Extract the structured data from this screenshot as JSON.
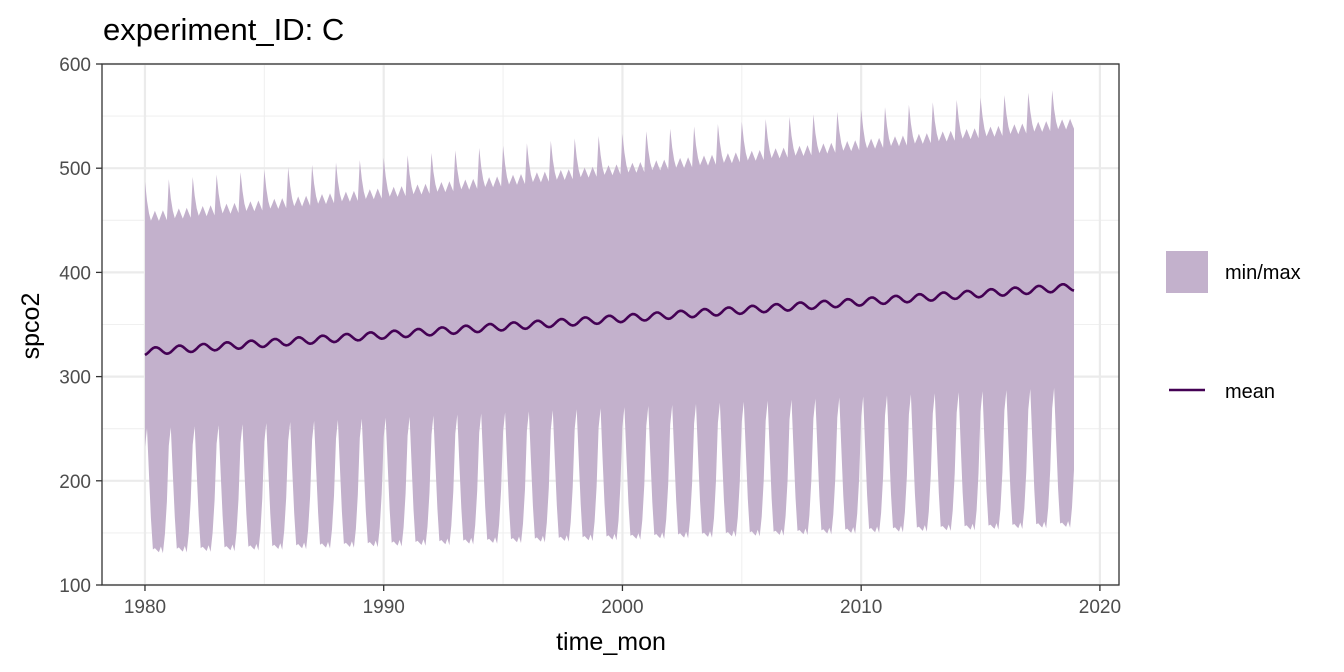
{
  "chart_data": {
    "type": "area",
    "title": "experiment_ID: C",
    "xlabel": "time_mon",
    "ylabel": "spco2",
    "xlim": [
      1978.2,
      2020.8
    ],
    "ylim": [
      100,
      600
    ],
    "x_ticks": [
      1980,
      1990,
      2000,
      2010,
      2020
    ],
    "x_tick_labels": [
      "1980",
      "1990",
      "2000",
      "2010",
      "2020"
    ],
    "y_ticks": [
      100,
      200,
      300,
      400,
      500,
      600
    ],
    "y_tick_labels": [
      "100",
      "200",
      "300",
      "400",
      "500",
      "600"
    ],
    "grid": true,
    "time_range": [
      1980.0,
      2018.95
    ],
    "series": [
      {
        "name": "min/max",
        "kind": "ribbon",
        "color": "#c3b1cc",
        "max_start": 485,
        "max_end": 575,
        "min_start": 125,
        "min_end": 150,
        "seasonal_peak": 250,
        "seasonal_peak_end": 290
      },
      {
        "name": "mean",
        "kind": "line",
        "color": "#440154",
        "start": 324,
        "end": 386,
        "seasonal_amplitude": 3.5
      }
    ],
    "legend": {
      "position": "right",
      "items": [
        {
          "name": "min/max",
          "type": "fill",
          "color": "#c3b1cc"
        },
        {
          "name": "mean",
          "type": "line",
          "color": "#440154"
        }
      ]
    }
  }
}
